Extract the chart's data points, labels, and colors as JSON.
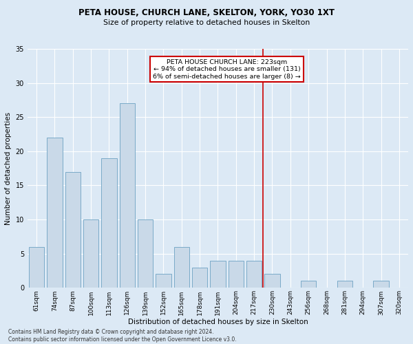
{
  "title": "PETA HOUSE, CHURCH LANE, SKELTON, YORK, YO30 1XT",
  "subtitle": "Size of property relative to detached houses in Skelton",
  "xlabel": "Distribution of detached houses by size in Skelton",
  "ylabel": "Number of detached properties",
  "categories": [
    "61sqm",
    "74sqm",
    "87sqm",
    "100sqm",
    "113sqm",
    "126sqm",
    "139sqm",
    "152sqm",
    "165sqm",
    "178sqm",
    "191sqm",
    "204sqm",
    "217sqm",
    "230sqm",
    "243sqm",
    "256sqm",
    "268sqm",
    "281sqm",
    "294sqm",
    "307sqm",
    "320sqm"
  ],
  "values": [
    6,
    22,
    17,
    10,
    19,
    27,
    10,
    2,
    6,
    3,
    4,
    4,
    4,
    2,
    0,
    1,
    0,
    1,
    0,
    1,
    0
  ],
  "bar_color": "#c9d9e8",
  "bar_edge_color": "#7aaac8",
  "annotation_text": "PETA HOUSE CHURCH LANE: 223sqm\n← 94% of detached houses are smaller (131)\n6% of semi-detached houses are larger (8) →",
  "annotation_box_color": "#ffffff",
  "annotation_box_edge_color": "#cc0000",
  "vline_color": "#cc0000",
  "bg_color": "#dce9f5",
  "footer_text": "Contains HM Land Registry data © Crown copyright and database right 2024.\nContains public sector information licensed under the Open Government Licence v3.0.",
  "ylim": [
    0,
    35
  ],
  "yticks": [
    0,
    5,
    10,
    15,
    20,
    25,
    30,
    35
  ],
  "vline_index": 12.5
}
